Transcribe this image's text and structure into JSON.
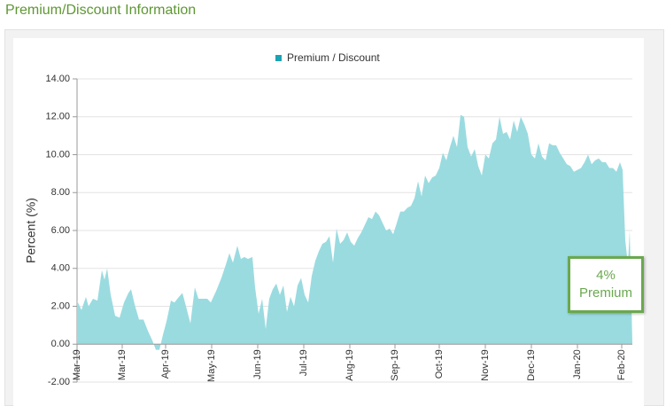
{
  "header": {
    "title": "Premium/Discount Information"
  },
  "chart_data": {
    "type": "area",
    "legend": "top",
    "y_label": "Percent (%)",
    "annotation": {
      "lines": [
        "4%",
        "Premium"
      ],
      "color": "#6aa84f"
    },
    "xlim": [
      0,
      627
    ],
    "xticks": [
      {
        "value": 0,
        "label": "Mar-19"
      },
      {
        "value": 51,
        "label": "Mar-19"
      },
      {
        "value": 100,
        "label": "Apr-19"
      },
      {
        "value": 152,
        "label": "May-19"
      },
      {
        "value": 204,
        "label": "Jun-19"
      },
      {
        "value": 256,
        "label": "Jul-19"
      },
      {
        "value": 308,
        "label": "Aug-19"
      },
      {
        "value": 359,
        "label": "Sep-19"
      },
      {
        "value": 409,
        "label": "Oct-19"
      },
      {
        "value": 461,
        "label": "Nov-19"
      },
      {
        "value": 513,
        "label": "Dec-19"
      },
      {
        "value": 565,
        "label": "Jan-20"
      },
      {
        "value": 615,
        "label": "Feb-20"
      }
    ],
    "ylim": [
      -2,
      14
    ],
    "yticks": [
      {
        "value": -2,
        "label": "-2.00"
      },
      {
        "value": 0,
        "label": "0.00"
      },
      {
        "value": 2,
        "label": "2.00"
      },
      {
        "value": 4,
        "label": "4.00"
      },
      {
        "value": 6,
        "label": "6.00"
      },
      {
        "value": 8,
        "label": "8.00"
      },
      {
        "value": 10,
        "label": "10.00"
      },
      {
        "value": 12,
        "label": "12.00"
      },
      {
        "value": 14,
        "label": "14.00"
      }
    ],
    "grid": true,
    "series": [
      {
        "name": "Premium / Discount",
        "color": "#9adbe0",
        "legend_color": "#1aa3b3",
        "x": [
          0,
          5,
          10,
          13,
          18,
          23,
          28,
          31,
          34,
          38,
          43,
          48,
          53,
          58,
          61,
          65,
          70,
          75,
          80,
          85,
          89,
          93,
          97,
          101,
          106,
          110,
          115,
          119,
          123,
          128,
          133,
          137,
          142,
          147,
          151,
          157,
          163,
          168,
          172,
          176,
          181,
          185,
          189,
          193,
          198,
          201,
          205,
          209,
          213,
          217,
          221,
          225,
          229,
          233,
          237,
          241,
          245,
          249,
          253,
          257,
          261,
          265,
          269,
          273,
          277,
          281,
          285,
          289,
          293,
          297,
          301,
          305,
          309,
          313,
          317,
          321,
          325,
          329,
          333,
          337,
          341,
          345,
          349,
          353,
          357,
          361,
          365,
          369,
          373,
          377,
          381,
          385,
          389,
          393,
          397,
          401,
          405,
          409,
          413,
          417,
          421,
          425,
          429,
          433,
          437,
          441,
          445,
          449,
          453,
          457,
          461,
          465,
          469,
          473,
          477,
          481,
          485,
          489,
          493,
          497,
          501,
          505,
          509,
          513,
          517,
          521,
          525,
          529,
          533,
          537,
          541,
          545,
          549,
          553,
          557,
          561,
          565,
          569,
          573,
          577,
          581,
          585,
          589,
          593,
          597,
          601,
          605,
          609,
          613,
          616,
          619,
          622,
          624,
          627
        ],
        "values": [
          2.3,
          1.8,
          2.5,
          2.0,
          2.4,
          2.3,
          3.9,
          3.4,
          4.0,
          2.6,
          1.5,
          1.4,
          2.2,
          2.7,
          2.9,
          2.1,
          1.3,
          1.3,
          0.7,
          0.2,
          -0.3,
          -0.3,
          0.5,
          1.2,
          2.3,
          2.2,
          2.5,
          2.7,
          2.0,
          1.1,
          3.0,
          2.4,
          2.4,
          2.4,
          2.2,
          2.8,
          3.5,
          4.2,
          4.8,
          4.3,
          5.2,
          4.5,
          4.6,
          4.5,
          4.6,
          3.0,
          1.6,
          2.4,
          0.8,
          2.4,
          2.9,
          3.2,
          2.6,
          3.1,
          1.7,
          2.5,
          2.0,
          3.1,
          3.5,
          2.6,
          2.2,
          3.6,
          4.4,
          4.9,
          5.3,
          5.4,
          5.7,
          4.3,
          6.1,
          5.3,
          5.5,
          5.9,
          5.4,
          5.2,
          5.6,
          5.9,
          6.3,
          6.7,
          6.6,
          7.0,
          6.8,
          6.4,
          6.0,
          6.1,
          5.8,
          6.4,
          7.0,
          7.0,
          7.2,
          7.3,
          7.7,
          8.6,
          7.8,
          8.9,
          8.5,
          8.8,
          8.9,
          9.3,
          10.1,
          9.7,
          10.4,
          11.0,
          10.4,
          12.1,
          12.0,
          10.4,
          9.9,
          10.3,
          9.4,
          8.9,
          10.0,
          9.8,
          10.6,
          10.8,
          12.0,
          11.1,
          11.2,
          10.8,
          11.8,
          11.2,
          12.0,
          11.6,
          11.1,
          10.0,
          9.8,
          10.6,
          9.9,
          9.7,
          10.6,
          10.5,
          10.5,
          10.1,
          9.8,
          9.5,
          9.4,
          9.1,
          9.2,
          9.3,
          9.6,
          10.0,
          9.5,
          9.7,
          9.8,
          9.6,
          9.6,
          9.3,
          9.3,
          9.1,
          9.6,
          9.2,
          5.5,
          4.2,
          6.0,
          0.1
        ]
      }
    ]
  }
}
